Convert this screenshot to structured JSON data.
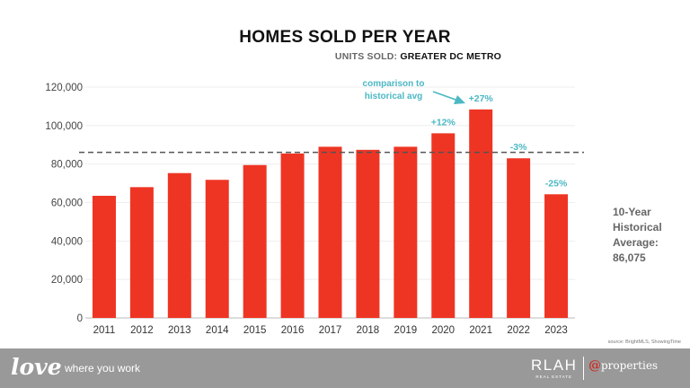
{
  "header": {
    "title": "HOMES SOLD PER YEAR",
    "subtitle_prefix": "UNITS SOLD:",
    "subtitle_region": "GREATER DC METRO"
  },
  "chart_data": {
    "type": "bar",
    "title": "HOMES SOLD PER YEAR",
    "subtitle": "UNITS SOLD: GREATER DC METRO",
    "xlabel": "",
    "ylabel": "",
    "ylim": [
      0,
      120000
    ],
    "ytick_values": [
      0,
      20000,
      40000,
      60000,
      80000,
      100000,
      120000
    ],
    "ytick_labels": [
      "0",
      "20,000",
      "40,000",
      "60,000",
      "80,000",
      "100,000",
      "120,000"
    ],
    "grid": true,
    "categories": [
      "2011",
      "2012",
      "2013",
      "2014",
      "2015",
      "2016",
      "2017",
      "2018",
      "2019",
      "2020",
      "2021",
      "2022",
      "2023"
    ],
    "values": [
      63500,
      68000,
      75300,
      71800,
      79500,
      85500,
      89000,
      87400,
      89000,
      96000,
      108400,
      83000,
      64300
    ],
    "bar_color": "#ee3524",
    "reference_line": {
      "value": 86075,
      "style": "dashed",
      "color": "#555555"
    },
    "annotations": [
      {
        "category": "2020",
        "text": "+12%"
      },
      {
        "category": "2021",
        "text": "+27%"
      },
      {
        "category": "2022",
        "text": "-3%"
      },
      {
        "category": "2023",
        "text": "-25%"
      }
    ],
    "annotation_color": "#4bb8c4",
    "callout": {
      "line1": "comparison to",
      "line2": "historical avg",
      "points_to": "2021"
    }
  },
  "side_note": {
    "line1": "10-Year",
    "line2": "Historical",
    "line3": "Average:",
    "value": "86,075"
  },
  "source_text": "source: BrightMLS, ShowingTime",
  "footer": {
    "love_word": "love",
    "tagline": "where you work",
    "brand": "RLAH",
    "brand_sub": "REAL ESTATE",
    "partner_at": "@",
    "partner_name": "properties"
  },
  "colors": {
    "bar": "#ee3524",
    "accent": "#4bb8c4",
    "footer_bg": "#999999",
    "partner_at": "#c9322a"
  }
}
